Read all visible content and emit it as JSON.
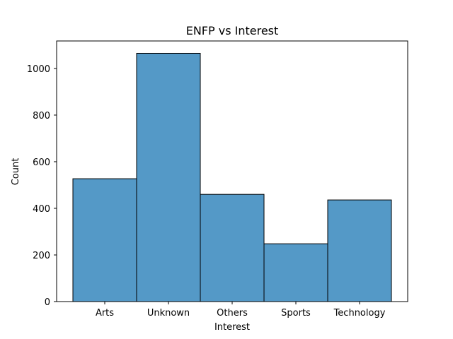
{
  "chart_data": {
    "type": "bar",
    "title": "ENFP vs Interest",
    "xlabel": "Interest",
    "ylabel": "Count",
    "categories": [
      "Arts",
      "Unknown",
      "Others",
      "Sports",
      "Technology"
    ],
    "values": [
      527,
      1065,
      460,
      248,
      436
    ],
    "yticks": [
      0,
      200,
      400,
      600,
      800,
      1000
    ],
    "ylim": [
      0,
      1118
    ],
    "grid": false,
    "bar_color": "#5499c7",
    "edge_color": "#000000"
  }
}
